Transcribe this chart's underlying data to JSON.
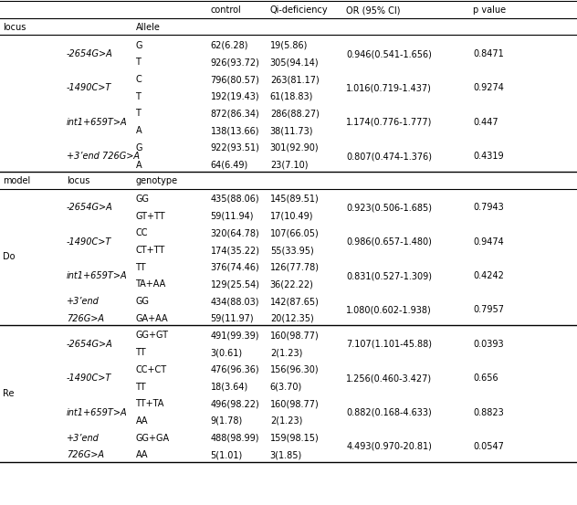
{
  "col_headers": [
    "",
    "",
    "",
    "control",
    "Qi-deficiency",
    "OR (95% CI)",
    "p value"
  ],
  "allele_section_hdr": [
    "locus",
    "",
    "Allele",
    "",
    "",
    "",
    ""
  ],
  "allele_groups": [
    {
      "locus": "-2654G>A",
      "rows": [
        {
          "allele": "G",
          "control": "62(6.28)",
          "qi": "19(5.86)"
        },
        {
          "allele": "T",
          "control": "926(93.72)",
          "qi": "305(94.14)"
        }
      ],
      "or": "0.946(0.541-1.656)",
      "p": "0.8471"
    },
    {
      "locus": "-1490C>T",
      "rows": [
        {
          "allele": "C",
          "control": "796(80.57)",
          "qi": "263(81.17)"
        },
        {
          "allele": "T",
          "control": "192(19.43)",
          "qi": "61(18.83)"
        }
      ],
      "or": "1.016(0.719-1.437)",
      "p": "0.9274"
    },
    {
      "locus": "int1+659T>A",
      "rows": [
        {
          "allele": "T",
          "control": "872(86.34)",
          "qi": "286(88.27)"
        },
        {
          "allele": "A",
          "control": "138(13.66)",
          "qi": "38(11.73)"
        }
      ],
      "or": "1.174(0.776-1.777)",
      "p": "0.447"
    },
    {
      "locus": "+3’end 726G>A",
      "rows": [
        {
          "allele": "G",
          "control": "922(93.51)",
          "qi": "301(92.90)"
        },
        {
          "allele": "A",
          "control": "64(6.49)",
          "qi": "23(7.10)"
        }
      ],
      "or": "0.807(0.474-1.376)",
      "p": "0.4319"
    }
  ],
  "geno_section_hdr": [
    "model",
    "locus",
    "genotype",
    "",
    "",
    "",
    ""
  ],
  "do_groups": [
    {
      "locus": "-2654G>A",
      "rows": [
        {
          "geno": "GG",
          "control": "435(88.06)",
          "qi": "145(89.51)"
        },
        {
          "geno": "GT+TT",
          "control": "59(11.94)",
          "qi": "17(10.49)"
        }
      ],
      "or": "0.923(0.506-1.685)",
      "p": "0.7943"
    },
    {
      "locus": "-1490C>T",
      "rows": [
        {
          "geno": "CC",
          "control": "320(64.78)",
          "qi": "107(66.05)"
        },
        {
          "geno": "CT+TT",
          "control": "174(35.22)",
          "qi": "55(33.95)"
        }
      ],
      "or": "0.986(0.657-1.480)",
      "p": "0.9474"
    },
    {
      "locus": "int1+659T>A",
      "rows": [
        {
          "geno": "TT",
          "control": "376(74.46)",
          "qi": "126(77.78)"
        },
        {
          "geno": "TA+AA",
          "control": "129(25.54)",
          "qi": "36(22.22)"
        }
      ],
      "or": "0.831(0.527-1.309)",
      "p": "0.4242"
    },
    {
      "locus": "+3’end\n726G>A",
      "rows": [
        {
          "geno": "GG",
          "control": "434(88.03)",
          "qi": "142(87.65)"
        },
        {
          "geno": "GA+AA",
          "control": "59(11.97)",
          "qi": "20(12.35)"
        }
      ],
      "or": "1.080(0.602-1.938)",
      "p": "0.7957"
    }
  ],
  "re_groups": [
    {
      "locus": "-2654G>A",
      "rows": [
        {
          "geno": "GG+GT",
          "control": "491(99.39)",
          "qi": "160(98.77)"
        },
        {
          "geno": "TT",
          "control": "3(0.61)",
          "qi": "2(1.23)"
        }
      ],
      "or": "7.107(1.101-45.88)",
      "p": "0.0393"
    },
    {
      "locus": "-1490C>T",
      "rows": [
        {
          "geno": "CC+CT",
          "control": "476(96.36)",
          "qi": "156(96.30)"
        },
        {
          "geno": "TT",
          "control": "18(3.64)",
          "qi": "6(3.70)"
        }
      ],
      "or": "1.256(0.460-3.427)",
      "p": "0.656"
    },
    {
      "locus": "int1+659T>A",
      "rows": [
        {
          "geno": "TT+TA",
          "control": "496(98.22)",
          "qi": "160(98.77)"
        },
        {
          "geno": "AA",
          "control": "9(1.78)",
          "qi": "2(1.23)"
        }
      ],
      "or": "0.882(0.168-4.633)",
      "p": "0.8823"
    },
    {
      "locus": "+3’end\n726G>A",
      "rows": [
        {
          "geno": "GG+GA",
          "control": "488(98.99)",
          "qi": "159(98.15)"
        },
        {
          "geno": "AA",
          "control": "5(1.01)",
          "qi": "3(1.85)"
        }
      ],
      "or": "4.493(0.970-20.81)",
      "p": "0.0547"
    }
  ],
  "bg_color": "#ffffff",
  "text_color": "#000000",
  "line_color": "#000000",
  "font_size": 7.0
}
